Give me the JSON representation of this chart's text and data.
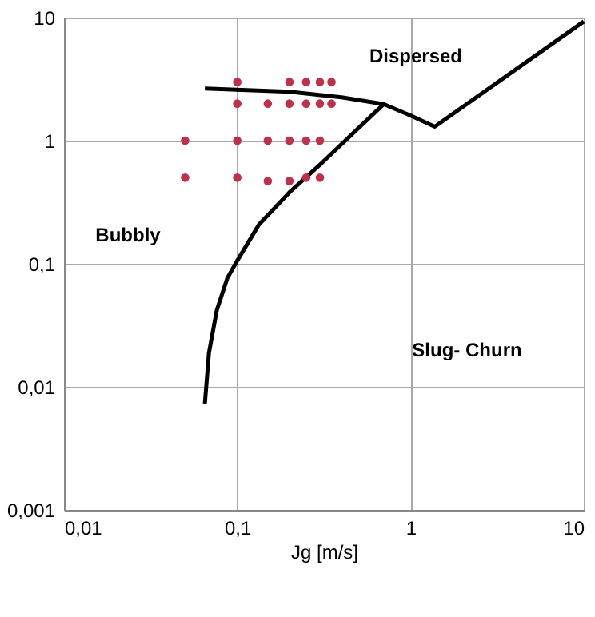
{
  "chart_data": {
    "type": "scatter",
    "xlabel": "Jg [m/s]",
    "log": "xy",
    "grid": true,
    "xlim": [
      0.01,
      10
    ],
    "ylim": [
      0.001,
      10
    ],
    "xticks": [
      {
        "value": 0.01,
        "label": "0,01"
      },
      {
        "value": 0.1,
        "label": "0,1"
      },
      1,
      10
    ],
    "yticks": [
      {
        "value": 0.001,
        "label": "0,001"
      },
      {
        "value": 0.01,
        "label": "0,01"
      },
      {
        "value": 0.1,
        "label": "0,1"
      },
      1,
      10
    ],
    "series": [
      {
        "color": "#c0304a",
        "marker": "circle",
        "x": [
          0.1,
          0.2,
          0.25,
          0.3,
          0.35,
          0.1,
          0.15,
          0.2,
          0.25,
          0.3,
          0.35,
          0.05,
          0.1,
          0.15,
          0.2,
          0.25,
          0.3,
          0.05,
          0.1,
          0.15,
          0.2,
          0.25,
          0.3
        ],
        "values": [
          3,
          3,
          3,
          3,
          3,
          2,
          2,
          2,
          2,
          2,
          2,
          1,
          1,
          1,
          1,
          1,
          1,
          0.5,
          0.5,
          0.47,
          0.47,
          0.5,
          0.5
        ]
      },
      {
        "type": "line",
        "color": "#000000",
        "marker": "none",
        "line_style": "solid",
        "x": [
          0.065,
          0.2,
          0.4,
          0.7,
          1.0,
          1.38,
          10
        ],
        "values": [
          2.65,
          2.5,
          2.25,
          1.98,
          1.6,
          1.3,
          9.3
        ]
      },
      {
        "type": "line",
        "color": "#000000",
        "marker": "none",
        "line_style": "solid",
        "x": [
          0.065,
          0.0686,
          0.0762,
          0.0875,
          0.1,
          0.133,
          0.2,
          0.308,
          0.7
        ],
        "values": [
          0.0073,
          0.0188,
          0.042,
          0.076,
          0.106,
          0.207,
          0.38,
          0.66,
          1.98
        ]
      }
    ],
    "annotations": [
      "Dispersed",
      "Bubbly",
      "Slug- Churn"
    ]
  }
}
